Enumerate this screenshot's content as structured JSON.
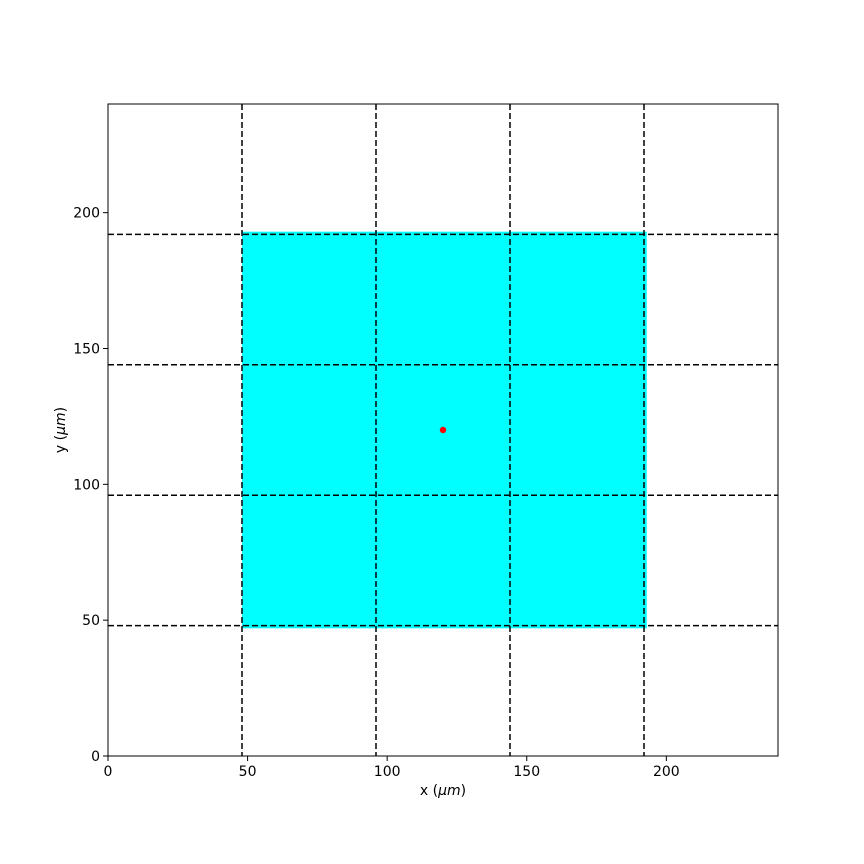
{
  "chart_data": {
    "type": "scatter",
    "title": "",
    "xlabel": {
      "prefix": "x (",
      "unit": "μm",
      "suffix": ")"
    },
    "ylabel": {
      "prefix": "y (",
      "unit": "μm",
      "suffix": ")"
    },
    "xlim": [
      0,
      240
    ],
    "ylim": [
      0,
      240
    ],
    "xticks": [
      0,
      50,
      100,
      150,
      200
    ],
    "yticks": [
      0,
      50,
      100,
      150,
      200
    ],
    "xtick_labels": [
      "0",
      "50",
      "100",
      "150",
      "200"
    ],
    "ytick_labels": [
      "0",
      "50",
      "100",
      "150",
      "200"
    ],
    "grid": false,
    "region": {
      "x": [
        48,
        193
      ],
      "y": [
        47,
        193
      ],
      "color": "#00ffff"
    },
    "vlines": [
      48,
      96,
      144,
      192
    ],
    "hlines": [
      48,
      96,
      144,
      192
    ],
    "line_style": "dashed",
    "line_color": "#000000",
    "points": [
      {
        "x": 120,
        "y": 120,
        "color": "#ff0000"
      }
    ]
  }
}
